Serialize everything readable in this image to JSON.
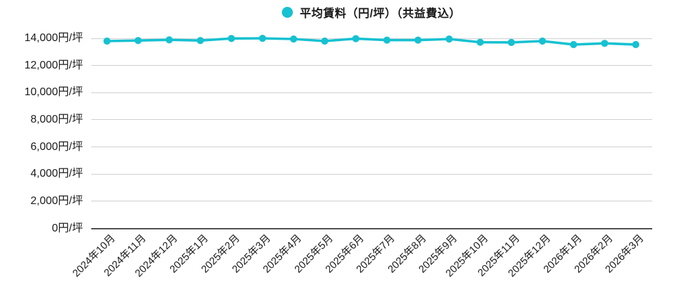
{
  "legend": {
    "label": "平均賃料（円/坪）（共益費込）"
  },
  "colors": {
    "line": "#16C1D1",
    "grid": "#CFCFCF",
    "axis": "#4D4D4D",
    "text": "#1A1A1A"
  },
  "chart_data": {
    "type": "line",
    "title": "",
    "legend_position": "top",
    "grid": "horizontal",
    "xlabel": "",
    "ylabel": "",
    "ylim": [
      0,
      14000
    ],
    "ytick_step": 2000,
    "yticks": [
      {
        "value": 0,
        "label": "0円/坪"
      },
      {
        "value": 2000,
        "label": "2,000円/坪"
      },
      {
        "value": 4000,
        "label": "4,000円/坪"
      },
      {
        "value": 6000,
        "label": "6,000円/坪"
      },
      {
        "value": 8000,
        "label": "8,000円/坪"
      },
      {
        "value": 10000,
        "label": "10,000円/坪"
      },
      {
        "value": 12000,
        "label": "12,000円/坪"
      },
      {
        "value": 14000,
        "label": "14,000円/坪"
      }
    ],
    "categories": [
      "2024年10月",
      "2024年11月",
      "2024年12月",
      "2025年1月",
      "2025年2月",
      "2025年3月",
      "2025年4月",
      "2025年5月",
      "2025年6月",
      "2025年7月",
      "2025年8月",
      "2025年9月",
      "2025年10月",
      "2025年11月",
      "2025年12月",
      "2026年1月",
      "2026年2月",
      "2026年3月"
    ],
    "series": [
      {
        "name": "平均賃料（円/坪）（共益費込）",
        "values": [
          13800,
          13840,
          13890,
          13840,
          13990,
          14000,
          13950,
          13800,
          13980,
          13870,
          13870,
          13950,
          13710,
          13700,
          13800,
          13540,
          13630,
          13540
        ]
      }
    ]
  }
}
